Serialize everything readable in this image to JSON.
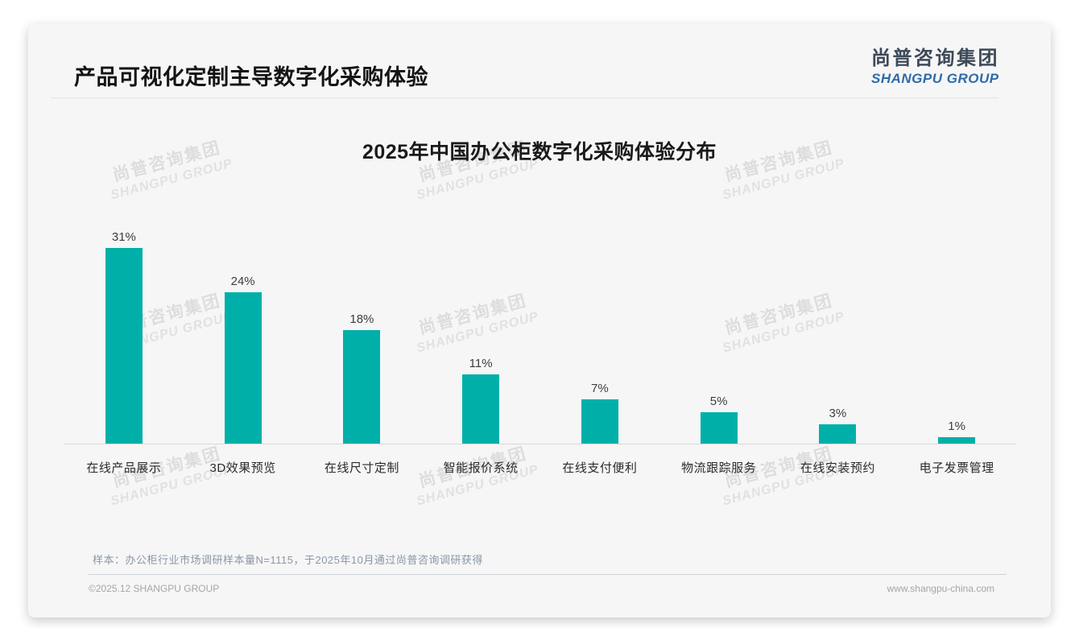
{
  "page": {
    "title": "产品可视化定制主导数字化采购体验",
    "logo": {
      "zh": "尚普咨询集团",
      "en": "SHANGPU GROUP"
    },
    "watermark": {
      "zh": "尚普咨询集团",
      "en": "SHANGPU GROUP"
    },
    "note": "样本：办公柜行业市场调研样本量N=1115，于2025年10月通过尚普咨询调研获得",
    "footer_left": "©2025.12 SHANGPU GROUP",
    "footer_right": "www.shangpu-china.com"
  },
  "colors": {
    "bar": "#00b0a8",
    "logo_blue": "#2e6ba8",
    "logo_dark": "#3d4a58",
    "card_bg": "#f6f6f7"
  },
  "chart_data": {
    "type": "bar",
    "title": "2025年中国办公柜数字化采购体验分布",
    "categories": [
      "在线产品展示",
      "3D效果预览",
      "在线尺寸定制",
      "智能报价系统",
      "在线支付便利",
      "物流跟踪服务",
      "在线安装预约",
      "电子发票管理"
    ],
    "values": [
      31,
      24,
      18,
      11,
      7,
      5,
      3,
      1
    ],
    "unit": "%",
    "value_label_format": "{v}%",
    "xlabel": "",
    "ylabel": "",
    "ylim": [
      0,
      35
    ],
    "grid": false,
    "legend": "none",
    "bar_color": "#00b0a8",
    "value_labels_position": "above bars"
  }
}
